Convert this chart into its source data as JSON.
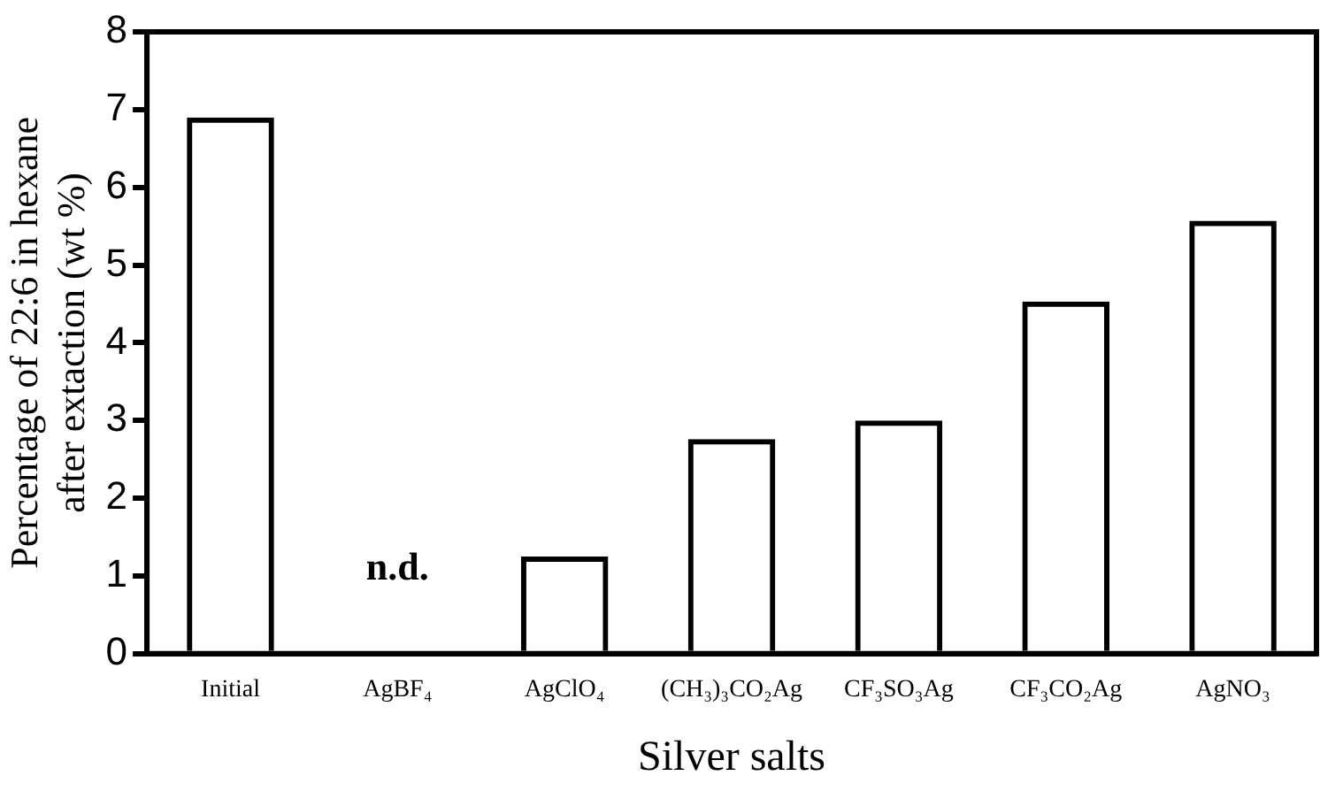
{
  "chart_data": {
    "type": "bar",
    "xlabel": "Silver salts",
    "ylabel": "Percentage of 22:6 in hexane after extaction (wt %)",
    "categories": [
      "Initial",
      "AgBF₄",
      "AgClO₄",
      "(CH₃)₃CO₂Ag",
      "CF₃SO₃Ag",
      "CF₃CO₂Ag",
      "AgNO₃"
    ],
    "values": [
      6.9,
      null,
      1.25,
      2.76,
      3.0,
      4.53,
      5.57
    ],
    "color": "#000000",
    "ylim": [
      0,
      8
    ],
    "yticks": [
      0,
      1,
      2,
      3,
      4,
      5,
      6,
      7,
      8
    ],
    "grid": false,
    "legend": false,
    "annotations": [
      "n.d."
    ]
  }
}
